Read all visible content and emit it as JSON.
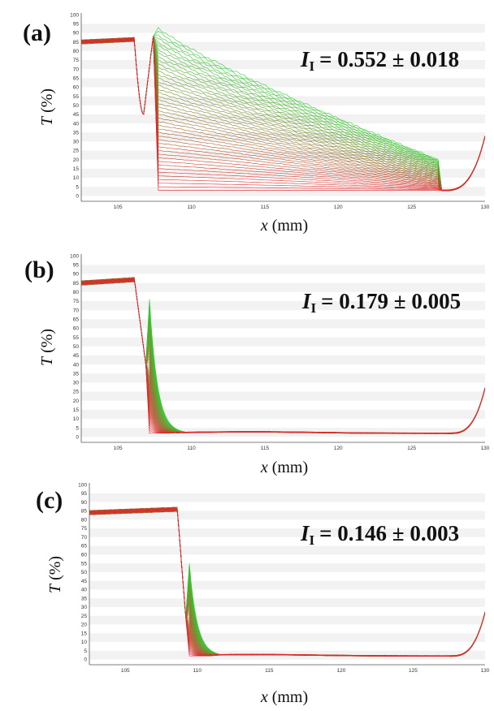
{
  "chart_data": [
    {
      "type": "line",
      "panel_label": "(a)",
      "xlabel_var": "x",
      "xlabel_unit": "(mm)",
      "ylabel_var": "T",
      "ylabel_unit": "(%)",
      "xlim": [
        102.5,
        130
      ],
      "ylim": [
        -3,
        101
      ],
      "xticks": [
        105,
        110,
        115,
        120,
        125,
        130
      ],
      "yticks": [
        0,
        5,
        10,
        15,
        20,
        25,
        30,
        35,
        40,
        45,
        50,
        55,
        60,
        65,
        70,
        75,
        80,
        85,
        90,
        95,
        100
      ],
      "grid": "horizontal bands",
      "annotation_var": "I",
      "annotation_sub": "I",
      "annotation_value": "= 0.552 ± 0.018",
      "color_gradient": [
        "#e8202a",
        "#2ecc2e"
      ],
      "profile": {
        "plateau": 85,
        "dip1_x": 106.4,
        "dip1_depth": 45,
        "edge_x": 107.4,
        "peak_max": 93,
        "peak_min": 3,
        "tail_end_x": 126.8,
        "tail_end_max": 20,
        "floor": 3,
        "end_rise": 33
      },
      "series": []
    },
    {
      "type": "line",
      "panel_label": "(b)",
      "xlabel_var": "x",
      "xlabel_unit": "(mm)",
      "ylabel_var": "T",
      "ylabel_unit": "(%)",
      "xlim": [
        102.5,
        130
      ],
      "ylim": [
        -3,
        101
      ],
      "xticks": [
        105,
        110,
        115,
        120,
        125,
        130
      ],
      "yticks": [
        0,
        5,
        10,
        15,
        20,
        25,
        30,
        35,
        40,
        45,
        50,
        55,
        60,
        65,
        70,
        75,
        80,
        85,
        90,
        95,
        100
      ],
      "grid": "horizontal bands",
      "annotation_var": "I",
      "annotation_sub": "I",
      "annotation_value": "= 0.179 ± 0.005",
      "color_gradient": [
        "#e8202a",
        "#2ecc2e"
      ],
      "profile": {
        "plateau": 85,
        "dip1_x": 106.4,
        "dip1_depth": 40,
        "edge_x": 106.9,
        "peak_max": 76,
        "peak_min": 2,
        "floor": 2,
        "end_rise": 27
      },
      "series": []
    },
    {
      "type": "line",
      "panel_label": "(c)",
      "xlabel_var": "x",
      "xlabel_unit": "(mm)",
      "ylabel_var": "T",
      "ylabel_unit": "(%)",
      "xlim": [
        102.5,
        130
      ],
      "ylim": [
        -3,
        101
      ],
      "xticks": [
        105,
        110,
        115,
        120,
        125,
        130
      ],
      "yticks": [
        0,
        5,
        10,
        15,
        20,
        25,
        30,
        35,
        40,
        45,
        50,
        55,
        60,
        65,
        70,
        75,
        80,
        85,
        90,
        95,
        100
      ],
      "grid": "horizontal bands",
      "annotation_var": "I",
      "annotation_sub": "I",
      "annotation_value": "= 0.146 ± 0.003",
      "color_gradient": [
        "#e8202a",
        "#2ecc2e"
      ],
      "profile": {
        "plateau": 84,
        "dip1_x": 108.9,
        "dip1_depth": 24,
        "edge_x": 109.2,
        "peak_max": 55,
        "peak_min": 2,
        "floor": 2,
        "end_rise": 27
      },
      "series": []
    }
  ]
}
